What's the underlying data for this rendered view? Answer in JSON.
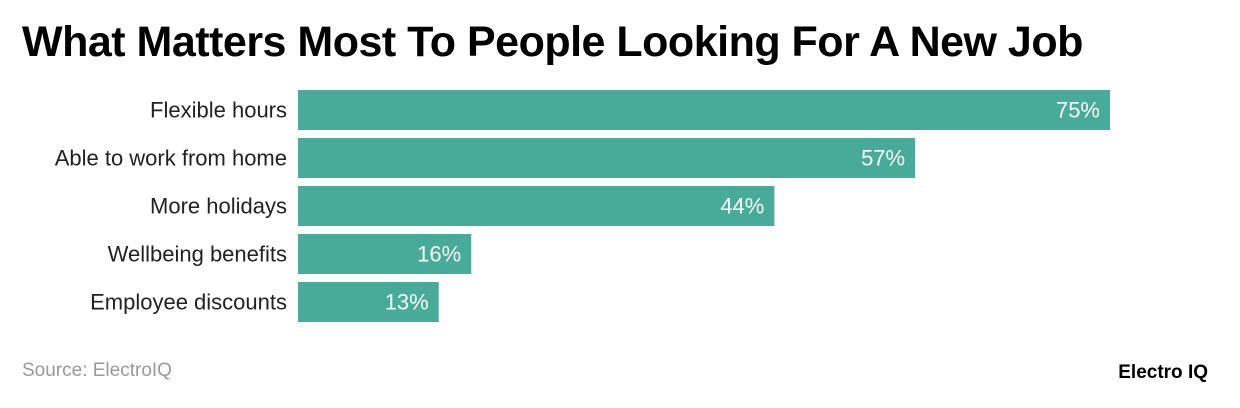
{
  "chart_data": {
    "type": "bar",
    "orientation": "horizontal",
    "title": "What Matters Most To People Looking For A New Job",
    "categories": [
      "Flexible hours",
      "Able to work from home",
      "More holidays",
      "Wellbeing benefits",
      "Employee discounts"
    ],
    "values": [
      75,
      57,
      44,
      16,
      13
    ],
    "value_suffix": "%",
    "xlim": [
      0,
      75
    ],
    "grid": false,
    "legend": "none",
    "bar_color": "#48aa98",
    "label_color": "#ffffff"
  },
  "footer": {
    "source": "Source: ElectroIQ",
    "brand": "Electro IQ"
  }
}
